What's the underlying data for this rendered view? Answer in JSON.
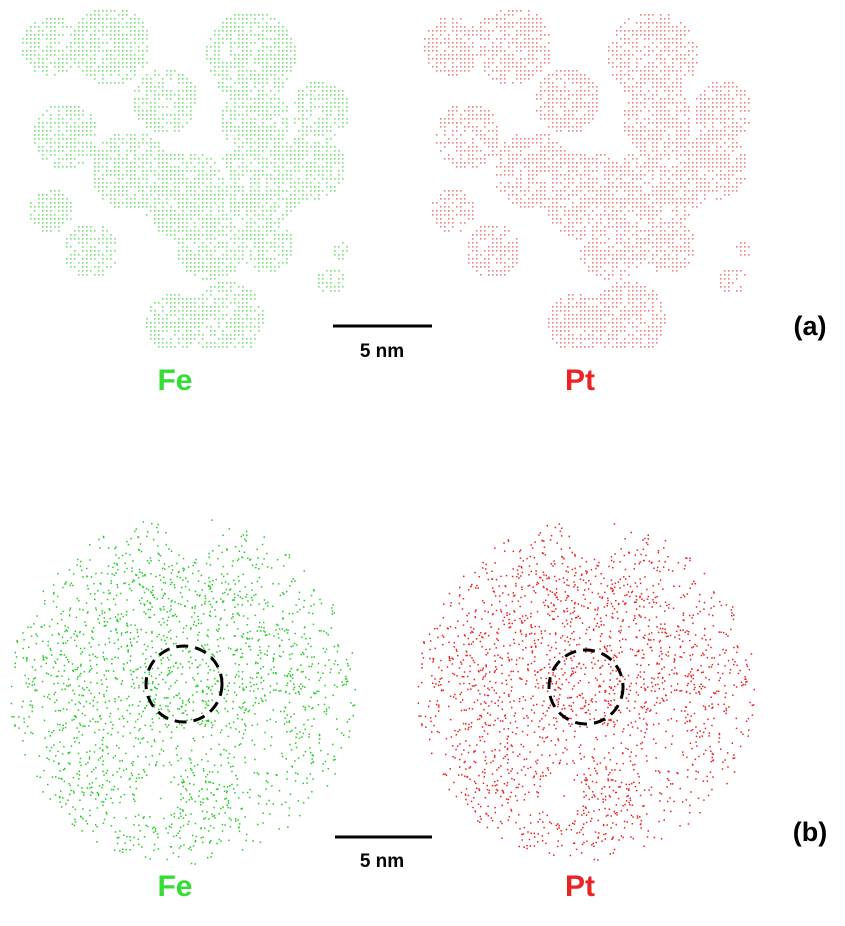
{
  "panels": [
    {
      "label": "(a)",
      "scale_bar": "5 nm",
      "maps": [
        {
          "element": "Fe"
        },
        {
          "element": "Pt"
        }
      ]
    },
    {
      "label": "(b)",
      "scale_bar": "5 nm",
      "maps": [
        {
          "element": "Fe"
        },
        {
          "element": "Pt"
        }
      ]
    }
  ]
}
